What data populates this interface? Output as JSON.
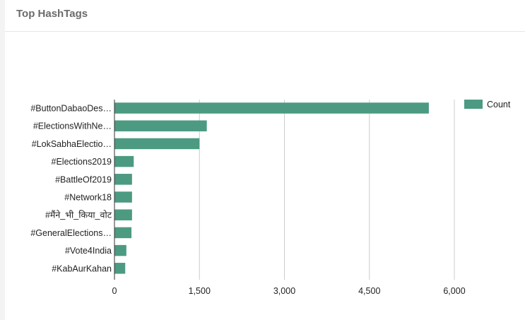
{
  "panel": {
    "title": "Top HashTags"
  },
  "chart_data": {
    "type": "bar",
    "orientation": "horizontal",
    "categories": [
      "#ButtonDabaoDes…",
      "#ElectionsWithNe…",
      "#LokSabhaElectio…",
      "#Elections2019",
      "#BattleOf2019",
      "#Network18",
      "#मैंने_भी_किया_वोट",
      "#GeneralElections…",
      "#Vote4India",
      "#KabAurKahan"
    ],
    "series": [
      {
        "name": "Count",
        "color": "#4c9a82",
        "values": [
          5550,
          1630,
          1500,
          340,
          310,
          310,
          310,
          300,
          210,
          190
        ]
      }
    ],
    "xlim": [
      0,
      6000
    ],
    "xticks": [
      0,
      1500,
      3000,
      4500,
      6000
    ],
    "xtick_labels": [
      "0",
      "1,500",
      "3,000",
      "4,500",
      "6,000"
    ],
    "grid": true,
    "legend": "top-right"
  }
}
